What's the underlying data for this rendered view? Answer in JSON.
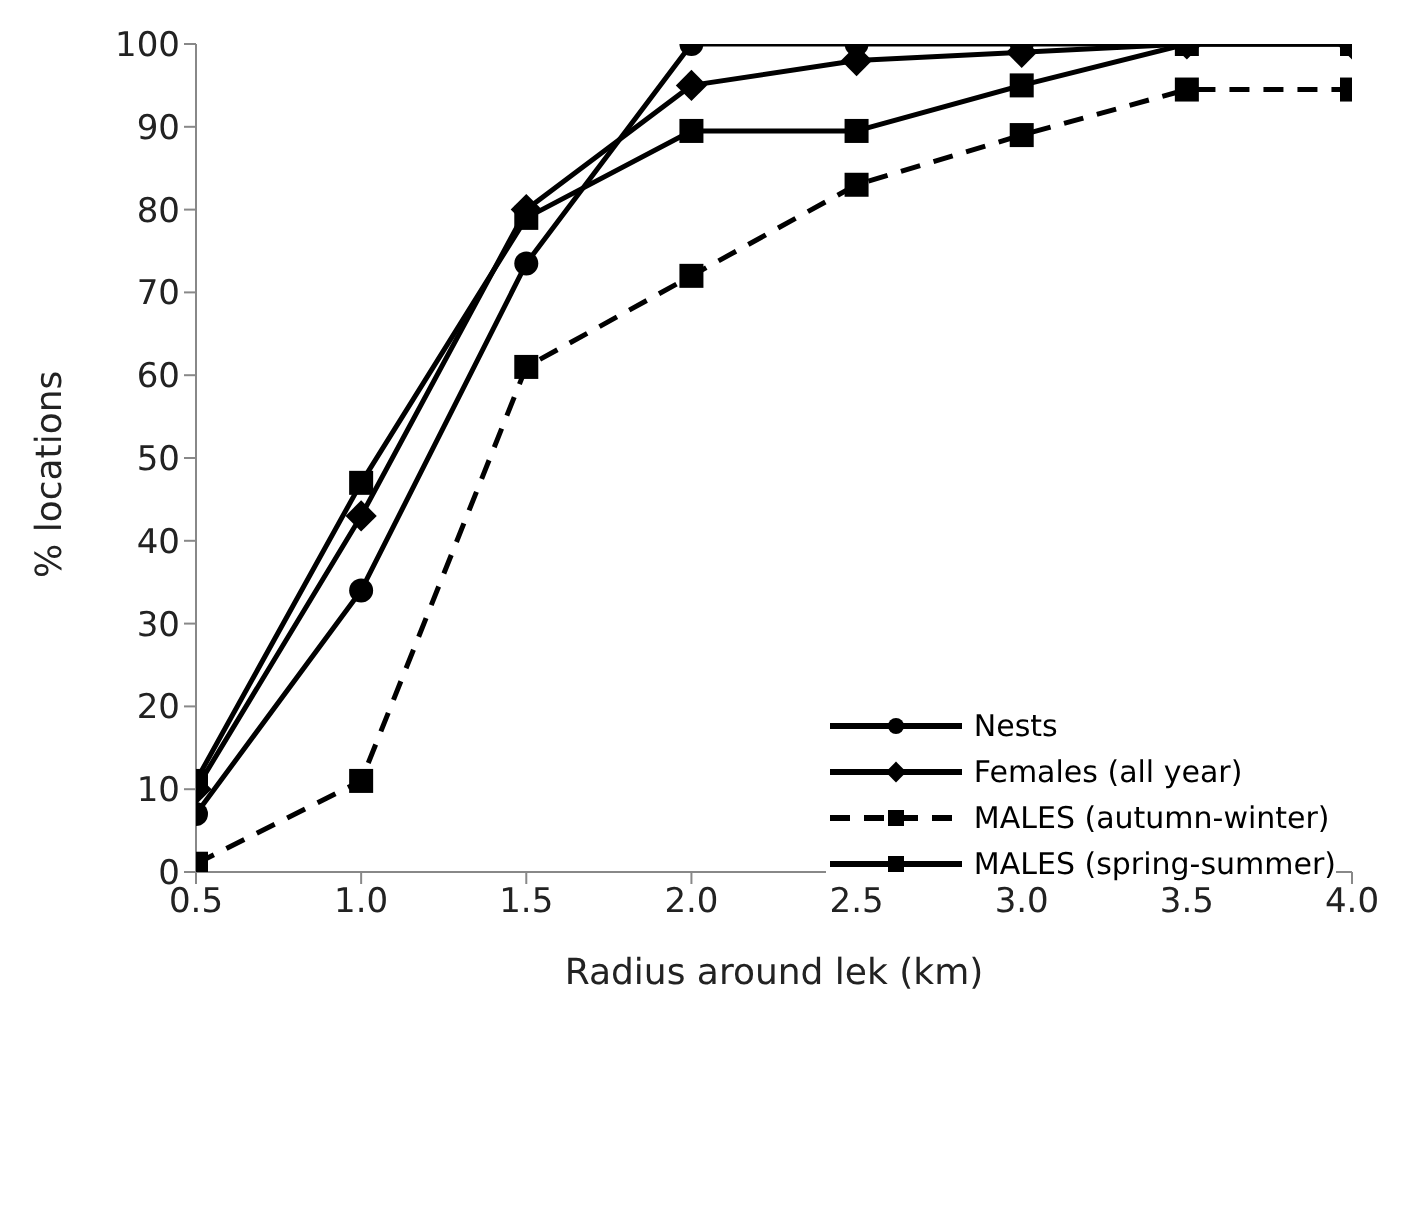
{
  "chart_data": {
    "type": "line",
    "xlabel": "Radius around lek (km)",
    "ylabel": "% locations",
    "x": [
      0.5,
      1.0,
      1.5,
      2.0,
      2.5,
      3.0,
      3.5,
      4.0
    ],
    "series": [
      {
        "name": "Nests",
        "color": "#000000",
        "marker": "circle",
        "line_style": "solid",
        "values": [
          7,
          34,
          73.5,
          100,
          100,
          100,
          100,
          100
        ]
      },
      {
        "name": "Females (all year)",
        "color": "#000000",
        "marker": "diamond",
        "line_style": "solid",
        "values": [
          10,
          43,
          80,
          95,
          98,
          99,
          100,
          100
        ]
      },
      {
        "name": "MALES (autumn-winter)",
        "color": "#000000",
        "marker": "square",
        "line_style": "dashed",
        "values": [
          1,
          11,
          61,
          72,
          83,
          89,
          94.5,
          94.5
        ]
      },
      {
        "name": "MALES (spring-summer)",
        "color": "#000000",
        "marker": "square",
        "line_style": "solid",
        "values": [
          11,
          47,
          79,
          89.5,
          89.5,
          95,
          100,
          100
        ]
      }
    ],
    "xlim": [
      0.5,
      4.0
    ],
    "xticks": [
      0.5,
      {
        "value": 1,
        "label": "1.0"
      },
      1.5,
      {
        "value": 2,
        "label": "2.0"
      },
      2.5,
      {
        "value": 3,
        "label": "3.0"
      },
      3.5,
      {
        "value": 4,
        "label": "4.0"
      }
    ],
    "ylim": [
      0,
      100
    ],
    "yticks": [
      0,
      10,
      20,
      30,
      40,
      50,
      60,
      70,
      80,
      90,
      100
    ],
    "grid": false,
    "legend": "bottom right"
  }
}
